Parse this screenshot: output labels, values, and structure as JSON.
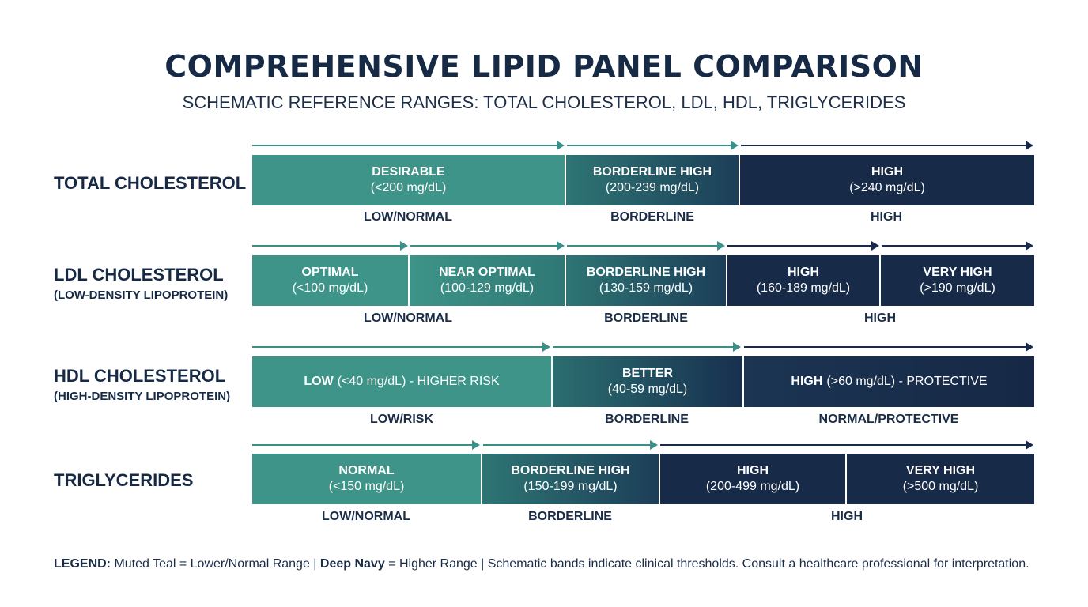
{
  "title": "COMPREHENSIVE LIPID PANEL COMPARISON",
  "subtitle": "SCHEMATIC REFERENCE RANGES: TOTAL CHOLESTEROL, LDL, HDL, TRIGLYCERIDES",
  "colors": {
    "teal": "#3e9488",
    "navy": "#172a48"
  },
  "rows": [
    {
      "label": "TOTAL CHOLESTEROL",
      "sublabel": "",
      "bands": [
        {
          "title": "DESIRABLE",
          "range": "(<200 mg/dL)"
        },
        {
          "title": "BORDERLINE HIGH",
          "range": "(200-239 mg/dL)"
        },
        {
          "title": "HIGH",
          "range": "(>240 mg/dL)"
        }
      ],
      "categories": [
        "LOW/NORMAL",
        "BORDERLINE",
        "HIGH"
      ]
    },
    {
      "label": "LDL CHOLESTEROL",
      "sublabel": "(LOW-DENSITY LIPOPROTEIN)",
      "bands": [
        {
          "title": "OPTIMAL",
          "range": "(<100 mg/dL)"
        },
        {
          "title": "NEAR OPTIMAL",
          "range": "(100-129 mg/dL)"
        },
        {
          "title": "BORDERLINE HIGH",
          "range": "(130-159 mg/dL)"
        },
        {
          "title": "HIGH",
          "range": "(160-189 mg/dL)"
        },
        {
          "title": "VERY HIGH",
          "range": "(>190 mg/dL)"
        }
      ],
      "categories": [
        "LOW/NORMAL",
        "BORDERLINE",
        "HIGH"
      ]
    },
    {
      "label": "HDL CHOLESTEROL",
      "sublabel": "(HIGH-DENSITY LIPOPROTEIN)",
      "bands": [
        {
          "title": "LOW",
          "range": "(<40 mg/dL) - HIGHER RISK"
        },
        {
          "title": "BETTER",
          "range": "(40-59 mg/dL)"
        },
        {
          "title": "HIGH",
          "range": "(>60 mg/dL) - PROTECTIVE"
        }
      ],
      "categories": [
        "LOW/RISK",
        "BORDERLINE",
        "NORMAL/PROTECTIVE"
      ]
    },
    {
      "label": "TRIGLYCERIDES",
      "sublabel": "",
      "bands": [
        {
          "title": "NORMAL",
          "range": "(<150 mg/dL)"
        },
        {
          "title": "BORDERLINE HIGH",
          "range": "(150-199 mg/dL)"
        },
        {
          "title": "HIGH",
          "range": "(200-499 mg/dL)"
        },
        {
          "title": "VERY HIGH",
          "range": "(>500 mg/dL)"
        }
      ],
      "categories": [
        "LOW/NORMAL",
        "BORDERLINE",
        "HIGH"
      ]
    }
  ],
  "legend": {
    "key1": "LEGEND:",
    "text1": " Muted Teal = Lower/Normal Range | ",
    "key2": "Deep Navy",
    "text2": " = Higher Range | Schematic bands indicate clinical thresholds. Consult a healthcare professional for interpretation."
  }
}
